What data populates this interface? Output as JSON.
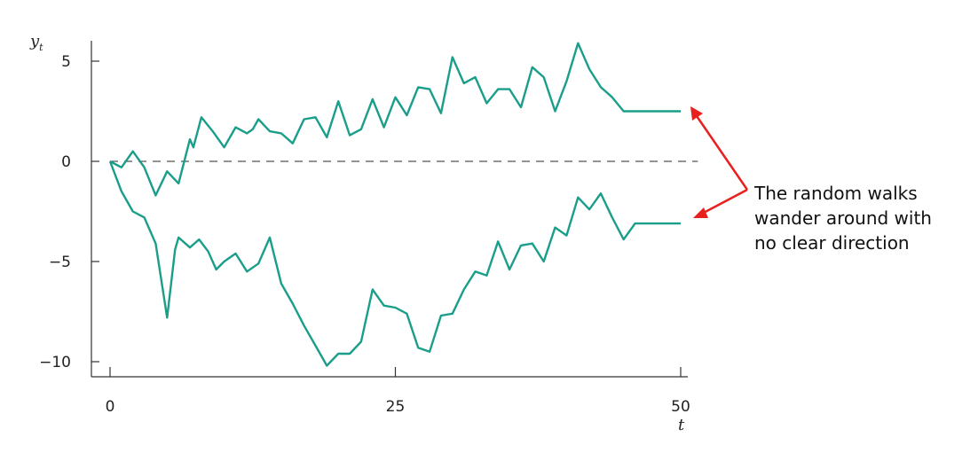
{
  "chart_data": {
    "type": "line",
    "xlabel": "t",
    "ylabel": "y",
    "ylabel_subscript": "t",
    "xlim": [
      -1,
      51
    ],
    "ylim": [
      -11,
      6
    ],
    "x_ticks": [
      0,
      25,
      50
    ],
    "y_ticks": [
      5,
      0,
      -5,
      -10
    ],
    "x_tick_labels": [
      "0",
      "25",
      "50"
    ],
    "y_tick_labels": [
      "5",
      "0",
      "−5",
      "−10"
    ],
    "reference_line": {
      "y": 0,
      "style": "dashed"
    },
    "line_color": "#1a9e8a",
    "series": [
      {
        "x": [
          0,
          1,
          2,
          3,
          4,
          5,
          6,
          7,
          7.3,
          8,
          9,
          10,
          11,
          12,
          12.5,
          13,
          14,
          15,
          16,
          17,
          18,
          19,
          20,
          21,
          22,
          23,
          24,
          25,
          26,
          27,
          28,
          29,
          30,
          31,
          32,
          33,
          34,
          35,
          36,
          37,
          38,
          39,
          40,
          41,
          42,
          43,
          44,
          45,
          46,
          47,
          48,
          49,
          50
        ],
        "values": [
          0,
          -0.3,
          0.5,
          -0.3,
          -1.7,
          -0.5,
          -1.1,
          1.1,
          0.7,
          2.2,
          1.5,
          0.7,
          1.7,
          1.4,
          1.6,
          2.1,
          1.5,
          1.4,
          0.9,
          2.1,
          2.2,
          1.2,
          3.0,
          1.3,
          1.6,
          3.1,
          1.7,
          3.2,
          2.3,
          3.7,
          3.6,
          2.4,
          5.2,
          3.9,
          4.2,
          2.9,
          3.6,
          3.6,
          2.7,
          4.7,
          4.2,
          2.5,
          4.0,
          5.9,
          4.6,
          3.7,
          3.2,
          2.5,
          2.5,
          2.5,
          2.5,
          2.5,
          2.5
        ]
      },
      {
        "x": [
          0,
          1,
          2,
          3,
          4,
          5,
          5.7,
          6,
          7,
          7.8,
          8.6,
          9.3,
          10,
          11,
          12,
          13,
          14,
          15,
          16,
          17,
          18,
          19,
          20,
          21,
          22,
          23,
          24,
          25,
          26,
          27,
          28,
          29,
          30,
          31,
          32,
          33,
          34,
          35,
          36,
          37,
          38,
          39,
          40,
          41,
          42,
          43,
          44,
          45,
          46,
          47,
          48,
          49,
          50
        ],
        "values": [
          0,
          -1.5,
          -2.5,
          -2.8,
          -4.1,
          -7.8,
          -4.4,
          -3.8,
          -4.3,
          -3.9,
          -4.5,
          -5.4,
          -5.0,
          -4.6,
          -5.5,
          -5.1,
          -3.8,
          -6.1,
          -7.1,
          -8.2,
          -9.2,
          -10.2,
          -9.6,
          -9.6,
          -9.0,
          -6.4,
          -7.2,
          -7.3,
          -7.6,
          -9.3,
          -9.5,
          -7.7,
          -7.6,
          -6.4,
          -5.5,
          -5.7,
          -4.0,
          -5.4,
          -4.2,
          -4.1,
          -5.0,
          -3.3,
          -3.7,
          -1.8,
          -2.4,
          -1.6,
          -2.8,
          -3.9,
          -3.1,
          -3.1,
          -3.1,
          -3.1,
          -3.1
        ]
      }
    ]
  },
  "annotation": {
    "lines": [
      "The random walks",
      "wander around with",
      "no clear direction"
    ],
    "arrow_color": "#e8201e"
  }
}
